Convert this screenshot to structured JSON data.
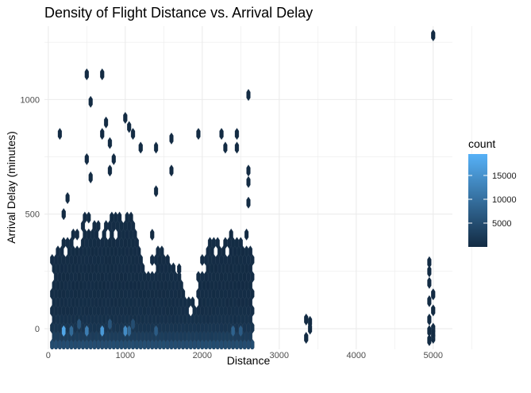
{
  "chart_data": {
    "type": "heatmap",
    "geom": "hexbin",
    "title": "Density of Flight Distance vs. Arrival Delay",
    "xlabel": "Distance",
    "ylabel": "Arrival Delay (minutes)",
    "xlim": [
      -50,
      5250
    ],
    "ylim": [
      -90,
      1320
    ],
    "x_ticks": [
      0,
      1000,
      2000,
      3000,
      4000,
      5000
    ],
    "x_tick_labels": [
      "0",
      "1000",
      "2000",
      "3000",
      "4000",
      "5000"
    ],
    "y_ticks": [
      0,
      500,
      1000
    ],
    "y_tick_labels": [
      "0",
      "500",
      "1000"
    ],
    "grid": true,
    "legend": {
      "title": "count",
      "position": "right",
      "range": [
        1,
        19500
      ],
      "ticks": [
        5000,
        10000,
        15000
      ],
      "tick_labels": [
        "5000",
        "10000",
        "15000"
      ],
      "color_low": "#132B43",
      "color_high": "#56B1F7"
    },
    "dense_regions": [
      {
        "x": [
          50,
          2650
        ],
        "y_bottom": -70,
        "y_top_profile": [
          [
            50,
            300
          ],
          [
            200,
            380
          ],
          [
            300,
            430
          ],
          [
            400,
            450
          ],
          [
            500,
            500
          ],
          [
            600,
            470
          ],
          [
            700,
            450
          ],
          [
            800,
            500
          ],
          [
            900,
            480
          ],
          [
            1000,
            500
          ],
          [
            1100,
            480
          ],
          [
            1200,
            330
          ],
          [
            1300,
            250
          ],
          [
            1400,
            350
          ],
          [
            1500,
            350
          ],
          [
            1600,
            290
          ],
          [
            1700,
            240
          ],
          [
            1800,
            140
          ],
          [
            1900,
            140
          ],
          [
            2000,
            320
          ],
          [
            2100,
            380
          ],
          [
            2200,
            380
          ],
          [
            2300,
            380
          ],
          [
            2400,
            430
          ],
          [
            2500,
            440
          ],
          [
            2600,
            420
          ],
          [
            2650,
            330
          ]
        ]
      }
    ],
    "points": [
      {
        "x": 150,
        "y": 850,
        "count": 1
      },
      {
        "x": 500,
        "y": 1110,
        "count": 1
      },
      {
        "x": 700,
        "y": 1110,
        "count": 1
      },
      {
        "x": 550,
        "y": 990,
        "count": 1
      },
      {
        "x": 1000,
        "y": 920,
        "count": 1
      },
      {
        "x": 750,
        "y": 900,
        "count": 1
      },
      {
        "x": 1050,
        "y": 880,
        "count": 2
      },
      {
        "x": 1100,
        "y": 850,
        "count": 2
      },
      {
        "x": 700,
        "y": 850,
        "count": 2
      },
      {
        "x": 800,
        "y": 810,
        "count": 1
      },
      {
        "x": 1200,
        "y": 790,
        "count": 1
      },
      {
        "x": 1400,
        "y": 790,
        "count": 1
      },
      {
        "x": 1600,
        "y": 830,
        "count": 1
      },
      {
        "x": 1950,
        "y": 850,
        "count": 1
      },
      {
        "x": 2250,
        "y": 850,
        "count": 1
      },
      {
        "x": 2450,
        "y": 850,
        "count": 1
      },
      {
        "x": 2600,
        "y": 1020,
        "count": 1
      },
      {
        "x": 2300,
        "y": 790,
        "count": 1
      },
      {
        "x": 2450,
        "y": 790,
        "count": 1
      },
      {
        "x": 500,
        "y": 740,
        "count": 1
      },
      {
        "x": 850,
        "y": 740,
        "count": 1
      },
      {
        "x": 800,
        "y": 690,
        "count": 1
      },
      {
        "x": 550,
        "y": 660,
        "count": 1
      },
      {
        "x": 1600,
        "y": 690,
        "count": 1
      },
      {
        "x": 2600,
        "y": 690,
        "count": 1
      },
      {
        "x": 2600,
        "y": 640,
        "count": 1
      },
      {
        "x": 2600,
        "y": 550,
        "count": 1
      },
      {
        "x": 1400,
        "y": 600,
        "count": 1
      },
      {
        "x": 1350,
        "y": 410,
        "count": 1
      },
      {
        "x": 250,
        "y": 570,
        "count": 1
      },
      {
        "x": 200,
        "y": 500,
        "count": 1
      },
      {
        "x": 1700,
        "y": 260,
        "count": 1
      },
      {
        "x": 3350,
        "y": -40,
        "count": 1
      },
      {
        "x": 3400,
        "y": 0,
        "count": 1
      },
      {
        "x": 3350,
        "y": 40,
        "count": 1
      },
      {
        "x": 3400,
        "y": 30,
        "count": 1
      },
      {
        "x": 4950,
        "y": 290,
        "count": 1
      },
      {
        "x": 4950,
        "y": 250,
        "count": 1
      },
      {
        "x": 5000,
        "y": 1280,
        "count": 1
      },
      {
        "x": 4950,
        "y": 200,
        "count": 1
      },
      {
        "x": 5000,
        "y": 150,
        "count": 1
      },
      {
        "x": 4950,
        "y": 120,
        "count": 1
      },
      {
        "x": 5000,
        "y": 80,
        "count": 1
      },
      {
        "x": 4950,
        "y": 40,
        "count": 1
      },
      {
        "x": 5000,
        "y": 0,
        "count": 1
      },
      {
        "x": 4950,
        "y": -10,
        "count": 1
      },
      {
        "x": 5000,
        "y": -40,
        "count": 1
      },
      {
        "x": 4950,
        "y": -50,
        "count": 1
      },
      {
        "x": 5000,
        "y": -20,
        "count": 1
      }
    ],
    "hotspots": [
      {
        "x": 200,
        "y": -10,
        "count": 18000
      },
      {
        "x": 300,
        "y": -10,
        "count": 9000
      },
      {
        "x": 500,
        "y": -10,
        "count": 12000
      },
      {
        "x": 700,
        "y": -10,
        "count": 16000
      },
      {
        "x": 1000,
        "y": -10,
        "count": 14000
      },
      {
        "x": 1050,
        "y": -10,
        "count": 9000
      },
      {
        "x": 1400,
        "y": -10,
        "count": 7000
      },
      {
        "x": 2400,
        "y": -10,
        "count": 8000
      },
      {
        "x": 2500,
        "y": -10,
        "count": 7000
      },
      {
        "x": 400,
        "y": 20,
        "count": 6000
      },
      {
        "x": 800,
        "y": 20,
        "count": 6000
      },
      {
        "x": 1100,
        "y": 20,
        "count": 5000
      }
    ]
  }
}
